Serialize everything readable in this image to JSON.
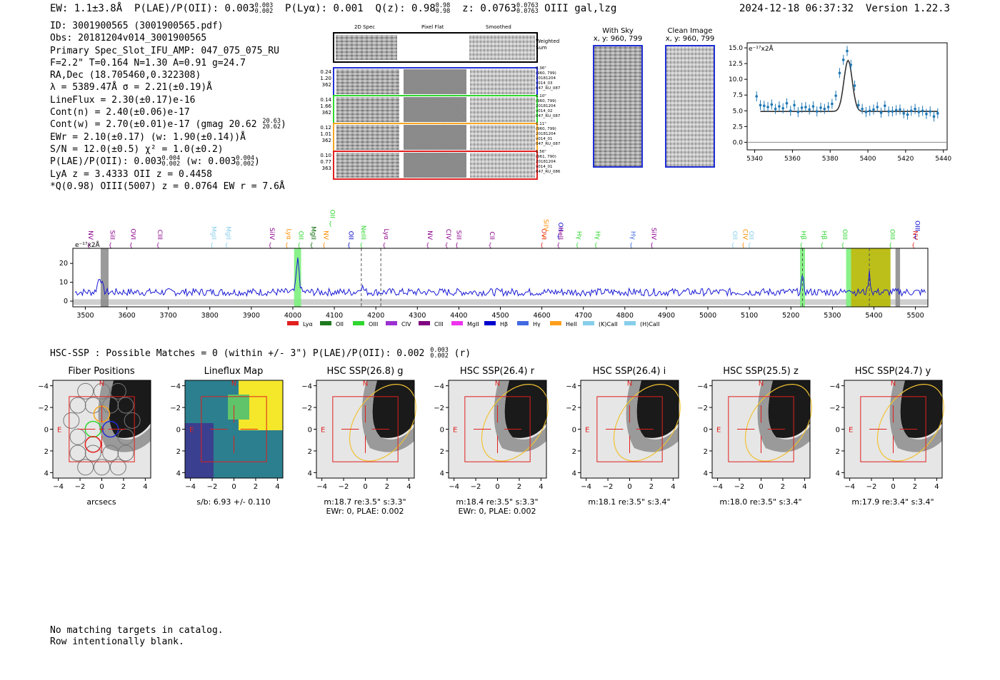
{
  "header": {
    "ew": "EW: 1.1±3.8Å",
    "plae_label": "P(LAE)/P(OII): 0.003",
    "plae_hi": "0.003",
    "plae_lo": "0.002",
    "plya": "P(Lyα): 0.001",
    "qz": "Q(z): 0.98",
    "qz_hi": "0.98",
    "qz_lo": "0.98",
    "z": "z: 0.0763",
    "z_hi": "0.0763",
    "z_lo": "0.0763",
    "line": "OIII  gal,lzg",
    "timestamp": "2024-12-18 06:37:32",
    "version": "Version 1.22.3"
  },
  "info": {
    "id": "ID: 3001900565 (3001900565.pdf)",
    "obs": "Obs: 20181204v014_3001900565",
    "primary": "Primary Spec_Slot_IFU_AMP: 047_075_075_RU",
    "params": "F=2.2\"  T=0.164  N=1.30  A=0.91  g=24.7",
    "radec": "RA,Dec (18.705460,0.322308)",
    "lambda": "λ = 5389.47Å  σ = 2.21(±0.19)Å",
    "lineflux": "LineFlux = 2.30(±0.17)e-16",
    "contn": "Cont(n) = 2.40(±0.06)e-17",
    "contw": "Cont(w) = 2.70(±0.01)e-17 (gmag 20.62",
    "gmag_hi": "20.63",
    "gmag_lo": "20.62",
    "ewr": "EWr = 2.10(±0.17) (w: 1.90(±0.14))Å",
    "sn": "S/N = 12.0(±0.5)  χ² = 1.0(±0.2)",
    "plae": "P(LAE)/P(OII): 0.003",
    "plae_hi": "0.004",
    "plae_lo": "0.002",
    "plae_w": "(w: 0.003",
    "plae_w_hi": "0.004",
    "plae_w_lo": "0.002",
    "lya": "LyA z = 3.4333  OII z = 0.4458",
    "q": "*Q(0.98) OIII(5007) z = 0.0764  EW r = 7.6Å"
  },
  "cutouts": {
    "col_titles": [
      "2D Spec",
      "Pixel Flat",
      "Smoothed"
    ],
    "weighted_sum": "Weighted Sum",
    "rows": [
      {
        "w": "0.24",
        "a": "1.20",
        "n": "362",
        "dist": "0.36\"",
        "xy": "(960, 799)",
        "obs1": "20181204",
        "obs2": "v014_03",
        "amp": "047_RU_087",
        "color": "#1f2fd6"
      },
      {
        "w": "0.14",
        "a": "1.66",
        "n": "362",
        "dist": "1.10\"",
        "xy": "(960, 799)",
        "obs1": "20181204",
        "obs2": "v014_02",
        "amp": "047_RU_087",
        "color": "#2fd62f"
      },
      {
        "w": "0.12",
        "a": "1.01",
        "n": "362",
        "dist": "1.11\"",
        "xy": "(960, 799)",
        "obs1": "20181204",
        "obs2": "v014_01",
        "amp": "047_RU_087",
        "color": "#f5a623"
      },
      {
        "w": "0.10",
        "a": "0.77",
        "n": "363",
        "dist": "1.56\"",
        "xy": "(961, 790)",
        "obs1": "20181204",
        "obs2": "v014_01",
        "amp": "047_RU_086",
        "color": "#e0201f"
      }
    ],
    "with_sky_title": "With Sky",
    "with_sky_xy": "x, y: 960, 799",
    "clean_title": "Clean Image",
    "clean_xy": "x, y: 960, 799"
  },
  "chart_data": [
    {
      "type": "scatter",
      "title": "",
      "ylabel": "e⁻¹⁷x2Å",
      "xlim": [
        5336,
        5442
      ],
      "ylim": [
        -1.2,
        15.8
      ],
      "xticks": [
        5340,
        5360,
        5380,
        5400,
        5420,
        5440
      ],
      "yticks": [
        0.0,
        2.5,
        5.0,
        7.5,
        10.0,
        12.5,
        15.0
      ],
      "ytick_labels": [
        "0.0",
        "2.5",
        "5.0",
        "7.5",
        "10.0",
        "12.5",
        "15.0"
      ],
      "points_x": [
        5341,
        5343,
        5345,
        5347,
        5349,
        5351,
        5353,
        5355,
        5357,
        5359,
        5361,
        5363,
        5365,
        5367,
        5369,
        5371,
        5373,
        5375,
        5377,
        5379,
        5381,
        5383,
        5385,
        5387,
        5389,
        5391,
        5393,
        5395,
        5397,
        5399,
        5401,
        5403,
        5405,
        5407,
        5409,
        5411,
        5413,
        5415,
        5417,
        5419,
        5421,
        5423,
        5425,
        5427,
        5429,
        5431,
        5433,
        5435,
        5437
      ],
      "points_y": [
        7.3,
        5.9,
        5.8,
        5.6,
        6.0,
        5.3,
        5.7,
        5.4,
        6.2,
        5.0,
        5.9,
        4.8,
        5.5,
        5.6,
        5.2,
        5.7,
        4.9,
        5.5,
        5.3,
        5.6,
        6.1,
        7.4,
        11.0,
        13.1,
        14.5,
        12.3,
        9.0,
        5.9,
        5.3,
        4.8,
        5.0,
        5.2,
        5.6,
        4.7,
        5.8,
        4.9,
        4.9,
        5.1,
        5.2,
        4.6,
        4.4,
        5.0,
        5.3,
        4.8,
        5.0,
        4.5,
        4.9,
        4.1,
        4.6
      ],
      "errors": [
        0.8,
        0.8,
        0.8,
        0.8,
        0.8,
        0.8,
        0.8,
        0.8,
        0.8,
        0.8,
        0.8,
        0.8,
        0.8,
        0.8,
        0.8,
        0.8,
        0.8,
        0.8,
        0.8,
        0.8,
        0.8,
        0.8,
        0.8,
        0.8,
        0.8,
        0.8,
        0.8,
        0.8,
        0.8,
        0.8,
        0.8,
        0.8,
        0.8,
        0.8,
        0.8,
        0.8,
        0.8,
        0.8,
        0.8,
        0.8,
        0.8,
        0.8,
        0.8,
        0.8,
        0.8,
        0.8,
        0.8,
        0.8,
        0.8
      ],
      "fit_continuum": 4.9,
      "fit_center": 5389.5,
      "fit_amplitude": 8.1,
      "fit_sigma": 2.2,
      "fit_xrange": [
        5343,
        5437
      ]
    },
    {
      "type": "line",
      "ylabel": "e⁻¹⁷x2Å",
      "xlim": [
        3470,
        5530
      ],
      "ylim": [
        -3,
        28
      ],
      "xticks": [
        3500,
        3600,
        3700,
        3800,
        3900,
        4000,
        4100,
        4200,
        4300,
        4400,
        4500,
        4600,
        4700,
        4800,
        4900,
        5000,
        5100,
        5200,
        5300,
        5400,
        5500
      ],
      "yticks": [
        0,
        10,
        20
      ],
      "baseline": 4.8,
      "peaks": [
        {
          "x": 3535,
          "amp": 8,
          "sigma": 5
        },
        {
          "x": 4012,
          "amp": 17,
          "sigma": 3.5
        },
        {
          "x": 4165,
          "amp": 3,
          "sigma": 5
        },
        {
          "x": 5228,
          "amp": 7,
          "sigma": 3
        },
        {
          "x": 5340,
          "amp": 2.5,
          "sigma": 4
        },
        {
          "x": 5389,
          "amp": 10,
          "sigma": 2.5
        }
      ],
      "green_bands": [
        [
          4003,
          4020
        ],
        [
          5222,
          5234
        ],
        [
          5333,
          5345
        ]
      ],
      "olive_band": [
        5345,
        5440
      ],
      "gray_bands": [
        [
          3537,
          3556
        ],
        [
          5452,
          5463
        ]
      ],
      "dashed_lines": [
        4165,
        4212,
        5228,
        5389
      ],
      "line_labels": [
        {
          "x": 3508,
          "name": "NV",
          "color": "#8b008b",
          "row": 2
        },
        {
          "x": 3560,
          "name": "SiII",
          "color": "#8b008b",
          "row": 2
        },
        {
          "x": 3610,
          "name": "OVI",
          "color": "#8b008b",
          "row": 2
        },
        {
          "x": 3675,
          "name": "CIII",
          "color": "#8b008b",
          "row": 2
        },
        {
          "x": 3805,
          "name": "MgII",
          "color": "#87ceeb",
          "row": 2
        },
        {
          "x": 3840,
          "name": "MgII",
          "color": "#87ceeb",
          "row": 2
        },
        {
          "x": 3945,
          "name": "SiIV",
          "color": "#8b008b",
          "row": 2
        },
        {
          "x": 3985,
          "name": "Lyα",
          "color": "#ff8c00",
          "row": 2
        },
        {
          "x": 4015,
          "name": "OII",
          "color": "#2fd62f",
          "row": 2
        },
        {
          "x": 4045,
          "name": "MgII",
          "color": "#006400",
          "row": 2
        },
        {
          "x": 4075,
          "name": "NV",
          "color": "#ff8c00",
          "row": 2
        },
        {
          "x": 4090,
          "name": "OII",
          "color": "#2fd62f",
          "row": 0
        },
        {
          "x": 4135,
          "name": "OII",
          "color": "#0000cd",
          "row": 2
        },
        {
          "x": 4165,
          "name": "NeIII",
          "color": "#2fd62f",
          "row": 2
        },
        {
          "x": 4220,
          "name": "Lyα",
          "color": "#8b008b",
          "row": 2
        },
        {
          "x": 4325,
          "name": "NV",
          "color": "#8b008b",
          "row": 2
        },
        {
          "x": 4370,
          "name": "CIV",
          "color": "#8b008b",
          "row": 2
        },
        {
          "x": 4395,
          "name": "SiII",
          "color": "#8b008b",
          "row": 2
        },
        {
          "x": 4475,
          "name": "CII",
          "color": "#8b008b",
          "row": 2
        },
        {
          "x": 4600,
          "name": "OVI",
          "color": "#e0201f",
          "row": 2
        },
        {
          "x": 4605,
          "name": "SiIV",
          "color": "#ff8c00",
          "row": 1
        },
        {
          "x": 4640,
          "name": "OII",
          "color": "#0000cd",
          "row": 1
        },
        {
          "x": 4640,
          "name": "HeII",
          "color": "#8b008b",
          "row": 2
        },
        {
          "x": 4685,
          "name": "Hγ",
          "color": "#2fd62f",
          "row": 2
        },
        {
          "x": 4730,
          "name": "Hγ",
          "color": "#2fd62f",
          "row": 2
        },
        {
          "x": 4815,
          "name": "Hγ",
          "color": "#4169e1",
          "row": 2
        },
        {
          "x": 4865,
          "name": "SiIV",
          "color": "#8b008b",
          "row": 2
        },
        {
          "x": 5060,
          "name": "OII",
          "color": "#87ceeb",
          "row": 2
        },
        {
          "x": 5085,
          "name": "CIV",
          "color": "#ff8c00",
          "row": 2
        },
        {
          "x": 5100,
          "name": "OII",
          "color": "#87ceeb",
          "row": 2
        },
        {
          "x": 5225,
          "name": "Hβ",
          "color": "#2fd62f",
          "row": 2
        },
        {
          "x": 5275,
          "name": "Hβ",
          "color": "#2fd62f",
          "row": 2
        },
        {
          "x": 5325,
          "name": "OIII",
          "color": "#2fd62f",
          "row": 2
        },
        {
          "x": 5440,
          "name": "OIII",
          "color": "#2fd62f",
          "row": 2
        },
        {
          "x": 5495,
          "name": "NV",
          "color": "#e0201f",
          "row": 2
        },
        {
          "x": 5500,
          "name": "OIII",
          "color": "#0000cd",
          "row": 1
        }
      ],
      "legend": [
        {
          "name": "Lyα",
          "color": "#e0201f"
        },
        {
          "name": "OII",
          "color": "#1e7a1e"
        },
        {
          "name": "OIII",
          "color": "#2fd62f"
        },
        {
          "name": "CIV",
          "color": "#9b30d0"
        },
        {
          "name": "CIII",
          "color": "#800080"
        },
        {
          "name": "MgII",
          "color": "#ee33ee"
        },
        {
          "name": "Hβ",
          "color": "#0000cd"
        },
        {
          "name": "Hγ",
          "color": "#4169e1"
        },
        {
          "name": "HeII",
          "color": "#ff9f1c"
        },
        {
          "name": "(K)CaII",
          "color": "#87ceeb"
        },
        {
          "name": "(H)CaII",
          "color": "#87ceeb"
        }
      ]
    }
  ],
  "hsc": {
    "summary": "HSC-SSP : Possible Matches = 0 (within +/- 3\")  P(LAE)/P(OII): 0.002",
    "summary_hi": "0.003",
    "summary_lo": "0.002",
    "summary_tail": "(r)",
    "panels": [
      {
        "title": "Fiber Positions",
        "cap1": "arcsecs",
        "cap2": ""
      },
      {
        "title": "Lineflux Map",
        "cap1": "s/b: 6.93 +/- 0.110",
        "cap2": ""
      },
      {
        "title": "HSC SSP(26.8) g",
        "cap1": "m:18.7  re:3.5\"  s:3.3\"",
        "cap2": "EWr: 0, PLAE: 0.002"
      },
      {
        "title": "HSC SSP(26.4) r",
        "cap1": "m:18.4  re:3.5\"  s:3.3\"",
        "cap2": "EWr: 0, PLAE: 0.002"
      },
      {
        "title": "HSC SSP(26.4) i",
        "cap1": "m:18.1  re:3.5\"  s:3.4\"",
        "cap2": ""
      },
      {
        "title": "HSC SSP(25.5) z",
        "cap1": "m:18.0  re:3.5\"  s:3.4\"",
        "cap2": ""
      },
      {
        "title": "HSC SSP(24.7) y",
        "cap1": "m:17.9  re:3.4\"  s:3.4\"",
        "cap2": ""
      }
    ],
    "axis_ticks": [
      "−4",
      "−2",
      "0",
      "2",
      "4"
    ],
    "north": "N",
    "east": "E"
  },
  "footer": {
    "line1": "No matching targets in catalog.",
    "line2": "Row intentionally blank."
  }
}
